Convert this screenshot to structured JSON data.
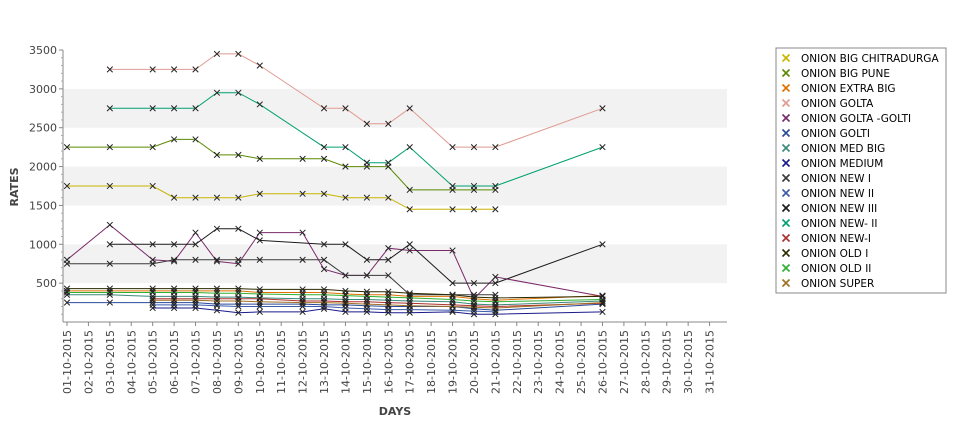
{
  "chart_data": {
    "type": "line",
    "xlabel": "DAYS",
    "ylabel": "RATES",
    "ylim": [
      0,
      3500
    ],
    "yticks": [
      500,
      1000,
      1500,
      2000,
      2500,
      3000,
      3500
    ],
    "grid": "horizontal-bands",
    "legend_position": "right",
    "categories": [
      "01-10-2015",
      "02-10-2015",
      "03-10-2015",
      "04-10-2015",
      "05-10-2015",
      "06-10-2015",
      "07-10-2015",
      "08-10-2015",
      "09-10-2015",
      "10-10-2015",
      "11-10-2015",
      "12-10-2015",
      "13-10-2015",
      "14-10-2015",
      "15-10-2015",
      "16-10-2015",
      "17-10-2015",
      "18-10-2015",
      "19-10-2015",
      "20-10-2015",
      "21-10-2015",
      "22-10-2015",
      "23-10-2015",
      "24-10-2015",
      "25-10-2015",
      "26-10-2015",
      "27-10-2015",
      "28-10-2015",
      "29-10-2015",
      "30-10-2015",
      "31-10-2015"
    ],
    "series": [
      {
        "name": "ONION BIG CHITRADURGA",
        "color": "#c8b400",
        "values": [
          1750,
          null,
          1750,
          null,
          1750,
          1600,
          1600,
          1600,
          1600,
          1650,
          null,
          1650,
          1650,
          1600,
          1600,
          1600,
          1450,
          null,
          1450,
          1450,
          1450,
          null,
          null,
          null,
          null,
          null,
          null,
          null,
          null,
          null,
          null
        ]
      },
      {
        "name": "ONION BIG PUNE",
        "color": "#5a8a00",
        "values": [
          2250,
          null,
          2250,
          null,
          2250,
          2350,
          2350,
          2150,
          2150,
          2100,
          null,
          2100,
          2100,
          2000,
          2000,
          2000,
          1700,
          null,
          1700,
          1700,
          1700,
          null,
          null,
          null,
          null,
          null,
          null,
          null,
          null,
          null,
          null
        ]
      },
      {
        "name": "ONION EXTRA BIG",
        "color": "#e07000",
        "values": [
          400,
          null,
          400,
          null,
          400,
          400,
          400,
          400,
          400,
          380,
          null,
          380,
          380,
          360,
          350,
          350,
          330,
          null,
          330,
          300,
          280,
          null,
          null,
          null,
          null,
          340,
          null,
          null,
          null,
          null,
          null
        ]
      },
      {
        "name": "ONION GOLTA",
        "color": "#e09a90",
        "values": [
          null,
          null,
          3250,
          null,
          3250,
          3250,
          3250,
          3450,
          3450,
          3300,
          null,
          null,
          2750,
          2750,
          2550,
          2550,
          2750,
          null,
          2250,
          2250,
          2250,
          null,
          null,
          null,
          null,
          2750,
          null,
          null,
          null,
          null,
          null
        ]
      },
      {
        "name": "ONION GOLTA -GOLTI",
        "color": "#7a2a6a",
        "values": [
          800,
          null,
          1250,
          null,
          800,
          780,
          1150,
          780,
          750,
          1150,
          null,
          1150,
          680,
          600,
          600,
          950,
          920,
          null,
          920,
          300,
          580,
          null,
          null,
          null,
          null,
          330,
          null,
          null,
          null,
          null,
          null
        ]
      },
      {
        "name": "ONION GOLTI",
        "color": "#2a4a9a",
        "values": [
          250,
          null,
          250,
          null,
          250,
          250,
          250,
          230,
          230,
          230,
          null,
          230,
          220,
          220,
          210,
          200,
          200,
          null,
          200,
          170,
          150,
          null,
          null,
          null,
          null,
          230,
          null,
          null,
          null,
          null,
          null
        ]
      },
      {
        "name": "ONION MED BIG",
        "color": "#3a8a7a",
        "values": [
          350,
          null,
          350,
          null,
          330,
          330,
          330,
          320,
          320,
          310,
          null,
          300,
          300,
          290,
          290,
          280,
          270,
          null,
          260,
          230,
          220,
          null,
          null,
          null,
          null,
          270,
          null,
          null,
          null,
          null,
          null
        ]
      },
      {
        "name": "ONION MEDIUM",
        "color": "#1a1a8a",
        "values": [
          null,
          null,
          null,
          null,
          180,
          180,
          180,
          150,
          120,
          130,
          null,
          130,
          170,
          130,
          130,
          120,
          120,
          null,
          130,
          100,
          100,
          null,
          null,
          null,
          null,
          130,
          null,
          null,
          null,
          null,
          null
        ]
      },
      {
        "name": "ONION NEW I",
        "color": "#3a3a3a",
        "values": [
          750,
          null,
          750,
          null,
          750,
          800,
          800,
          800,
          800,
          800,
          null,
          800,
          800,
          600,
          600,
          600,
          350,
          null,
          350,
          350,
          350,
          null,
          null,
          null,
          null,
          null,
          null,
          null,
          null,
          null,
          null
        ]
      },
      {
        "name": "ONION NEW II",
        "color": "#3a5aaa",
        "values": [
          null,
          null,
          null,
          null,
          220,
          220,
          220,
          210,
          200,
          200,
          null,
          200,
          200,
          180,
          170,
          160,
          160,
          null,
          150,
          140,
          130,
          null,
          null,
          null,
          null,
          null,
          null,
          null,
          null,
          null,
          null
        ]
      },
      {
        "name": "ONION NEW III",
        "color": "#1a1a1a",
        "values": [
          null,
          null,
          1000,
          null,
          1000,
          1000,
          1000,
          1200,
          1200,
          1050,
          null,
          null,
          1000,
          1000,
          800,
          800,
          1000,
          null,
          500,
          500,
          500,
          null,
          null,
          null,
          null,
          1000,
          null,
          null,
          null,
          null,
          null
        ]
      },
      {
        "name": "ONION NEW- II",
        "color": "#00a070",
        "values": [
          null,
          null,
          2750,
          null,
          2750,
          2750,
          2750,
          2950,
          2950,
          2800,
          null,
          null,
          2250,
          2250,
          2050,
          2050,
          2250,
          null,
          1750,
          1750,
          1750,
          null,
          null,
          null,
          null,
          2250,
          null,
          null,
          null,
          null,
          null
        ]
      },
      {
        "name": "ONION NEW-I",
        "color": "#b03030",
        "values": [
          null,
          null,
          null,
          null,
          300,
          300,
          300,
          300,
          300,
          300,
          null,
          270,
          270,
          260,
          260,
          250,
          240,
          null,
          220,
          210,
          200,
          null,
          null,
          null,
          null,
          240,
          null,
          null,
          null,
          null,
          null
        ]
      },
      {
        "name": "ONION OLD I",
        "color": "#2a2a00",
        "values": [
          430,
          null,
          430,
          null,
          430,
          430,
          430,
          430,
          430,
          420,
          null,
          420,
          420,
          400,
          390,
          390,
          370,
          null,
          350,
          320,
          310,
          null,
          null,
          null,
          null,
          330,
          null,
          null,
          null,
          null,
          null
        ]
      },
      {
        "name": "ONION OLD II",
        "color": "#30b030",
        "values": [
          380,
          null,
          380,
          null,
          380,
          380,
          380,
          370,
          370,
          360,
          null,
          350,
          350,
          340,
          330,
          320,
          310,
          null,
          290,
          270,
          260,
          null,
          null,
          null,
          null,
          290,
          null,
          null,
          null,
          null,
          null
        ]
      },
      {
        "name": "ONION SUPER",
        "color": "#a07020",
        "values": [
          null,
          null,
          null,
          null,
          280,
          280,
          280,
          270,
          270,
          260,
          null,
          250,
          250,
          240,
          230,
          220,
          210,
          null,
          200,
          190,
          180,
          null,
          null,
          null,
          null,
          250,
          null,
          null,
          null,
          null,
          null
        ]
      }
    ]
  }
}
